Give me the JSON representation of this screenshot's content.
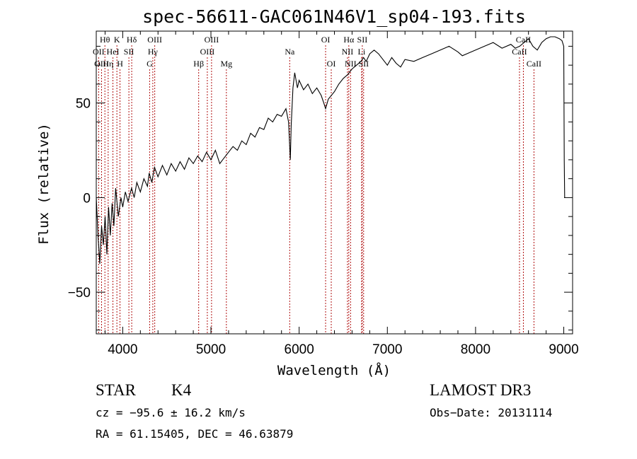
{
  "chart_data": {
    "type": "line",
    "title": "spec-56611-GAC061N46V1_sp04-193.fits",
    "xlabel": "Wavelength (Å)",
    "ylabel": "Flux (relative)",
    "xlim": [
      3700,
      9100
    ],
    "ylim": [
      -72,
      88
    ],
    "x_ticks": [
      4000,
      5000,
      6000,
      7000,
      8000,
      9000
    ],
    "y_ticks": [
      -50,
      0,
      50
    ],
    "x_tick_labels": [
      "4000",
      "5000",
      "6000",
      "7000",
      "8000",
      "9000"
    ],
    "y_tick_labels": [
      "−50",
      "0",
      "50"
    ],
    "grid": false,
    "series": [
      {
        "name": "flux",
        "color": "#000000",
        "points": [
          [
            3700,
            0
          ],
          [
            3720,
            -20
          ],
          [
            3740,
            -35
          ],
          [
            3760,
            -15
          ],
          [
            3780,
            -25
          ],
          [
            3800,
            -10
          ],
          [
            3820,
            -30
          ],
          [
            3840,
            -5
          ],
          [
            3860,
            -20
          ],
          [
            3880,
            -3
          ],
          [
            3900,
            -15
          ],
          [
            3920,
            5
          ],
          [
            3950,
            -10
          ],
          [
            3980,
            0
          ],
          [
            4000,
            -5
          ],
          [
            4030,
            3
          ],
          [
            4060,
            -2
          ],
          [
            4100,
            5
          ],
          [
            4130,
            0
          ],
          [
            4160,
            8
          ],
          [
            4200,
            3
          ],
          [
            4240,
            10
          ],
          [
            4280,
            6
          ],
          [
            4300,
            13
          ],
          [
            4330,
            8
          ],
          [
            4360,
            16
          ],
          [
            4400,
            11
          ],
          [
            4450,
            17
          ],
          [
            4500,
            12
          ],
          [
            4550,
            18
          ],
          [
            4600,
            14
          ],
          [
            4650,
            19
          ],
          [
            4700,
            15
          ],
          [
            4750,
            21
          ],
          [
            4800,
            18
          ],
          [
            4850,
            22
          ],
          [
            4900,
            19
          ],
          [
            4950,
            24
          ],
          [
            5000,
            20
          ],
          [
            5050,
            25
          ],
          [
            5100,
            18
          ],
          [
            5150,
            21
          ],
          [
            5200,
            24
          ],
          [
            5250,
            27
          ],
          [
            5300,
            25
          ],
          [
            5350,
            30
          ],
          [
            5400,
            28
          ],
          [
            5450,
            34
          ],
          [
            5500,
            32
          ],
          [
            5550,
            37
          ],
          [
            5600,
            36
          ],
          [
            5650,
            42
          ],
          [
            5700,
            40
          ],
          [
            5750,
            44
          ],
          [
            5800,
            43
          ],
          [
            5850,
            47
          ],
          [
            5880,
            40
          ],
          [
            5900,
            20
          ],
          [
            5910,
            38
          ],
          [
            5930,
            58
          ],
          [
            5950,
            66
          ],
          [
            5980,
            58
          ],
          [
            6000,
            62
          ],
          [
            6050,
            57
          ],
          [
            6100,
            60
          ],
          [
            6150,
            55
          ],
          [
            6200,
            58
          ],
          [
            6250,
            54
          ],
          [
            6280,
            50
          ],
          [
            6300,
            47
          ],
          [
            6330,
            52
          ],
          [
            6400,
            56
          ],
          [
            6450,
            60
          ],
          [
            6500,
            63
          ],
          [
            6550,
            65
          ],
          [
            6600,
            68
          ],
          [
            6650,
            70
          ],
          [
            6700,
            72
          ],
          [
            6730,
            74
          ],
          [
            6760,
            72
          ],
          [
            6800,
            76
          ],
          [
            6850,
            78
          ],
          [
            6900,
            76
          ],
          [
            6950,
            73
          ],
          [
            7000,
            70
          ],
          [
            7050,
            74
          ],
          [
            7100,
            71
          ],
          [
            7150,
            69
          ],
          [
            7200,
            73
          ],
          [
            7300,
            72
          ],
          [
            7400,
            74
          ],
          [
            7500,
            76
          ],
          [
            7600,
            78
          ],
          [
            7700,
            80
          ],
          [
            7800,
            77
          ],
          [
            7850,
            75
          ],
          [
            7900,
            76
          ],
          [
            8000,
            78
          ],
          [
            8100,
            80
          ],
          [
            8200,
            82
          ],
          [
            8300,
            79
          ],
          [
            8400,
            81
          ],
          [
            8450,
            79
          ],
          [
            8500,
            80
          ],
          [
            8550,
            82
          ],
          [
            8600,
            84
          ],
          [
            8650,
            80
          ],
          [
            8700,
            78
          ],
          [
            8750,
            82
          ],
          [
            8800,
            84
          ],
          [
            8850,
            85
          ],
          [
            8900,
            85
          ],
          [
            8950,
            84
          ],
          [
            8980,
            83
          ],
          [
            9000,
            80
          ],
          [
            9005,
            20
          ],
          [
            9010,
            0
          ],
          [
            9015,
            0
          ]
        ]
      }
    ],
    "lines": [
      {
        "label": "Hθ",
        "x": 3798,
        "row": 1
      },
      {
        "label": "OII",
        "x": 3727,
        "row": 2
      },
      {
        "label": "OIII",
        "x": 3760,
        "row": 3
      },
      {
        "label": "Hη",
        "x": 3835,
        "row": 3
      },
      {
        "label": "K",
        "x": 3934,
        "row": 1
      },
      {
        "label": "H",
        "x": 3969,
        "row": 3
      },
      {
        "label": "HeI",
        "x": 3889,
        "row": 2
      },
      {
        "label": "SII",
        "x": 4070,
        "row": 2
      },
      {
        "label": "Hδ",
        "x": 4102,
        "row": 1
      },
      {
        "label": "OIII",
        "x": 4363,
        "row": 1
      },
      {
        "label": "Hγ",
        "x": 4341,
        "row": 2
      },
      {
        "label": "G",
        "x": 4305,
        "row": 3
      },
      {
        "label": "OIII",
        "x": 5007,
        "row": 1
      },
      {
        "label": "OIII",
        "x": 4959,
        "row": 2
      },
      {
        "label": "Hβ",
        "x": 4861,
        "row": 3
      },
      {
        "label": "Mg",
        "x": 5175,
        "row": 3
      },
      {
        "label": "Na",
        "x": 5893,
        "row": 2
      },
      {
        "label": "OI",
        "x": 6300,
        "row": 1
      },
      {
        "label": "OI",
        "x": 6364,
        "row": 3
      },
      {
        "label": "Hα",
        "x": 6563,
        "row": 1
      },
      {
        "label": "SII",
        "x": 6716,
        "row": 1
      },
      {
        "label": "NII",
        "x": 6548,
        "row": 2
      },
      {
        "label": "NII",
        "x": 6583,
        "row": 3
      },
      {
        "label": "Li",
        "x": 6708,
        "row": 2
      },
      {
        "label": "SII",
        "x": 6731,
        "row": 3
      },
      {
        "label": "CaII",
        "x": 8542,
        "row": 1
      },
      {
        "label": "CaII",
        "x": 8498,
        "row": 2
      },
      {
        "label": "CaII",
        "x": 8662,
        "row": 3
      }
    ]
  },
  "info": {
    "object_class": "STAR",
    "subclass": "K4",
    "survey": "LAMOST DR3",
    "cz": "cz = −95.6 ± 16.2 km/s",
    "obs_date": "Obs−Date: 20131114",
    "coords": "RA =  61.15405, DEC =  46.63879"
  }
}
